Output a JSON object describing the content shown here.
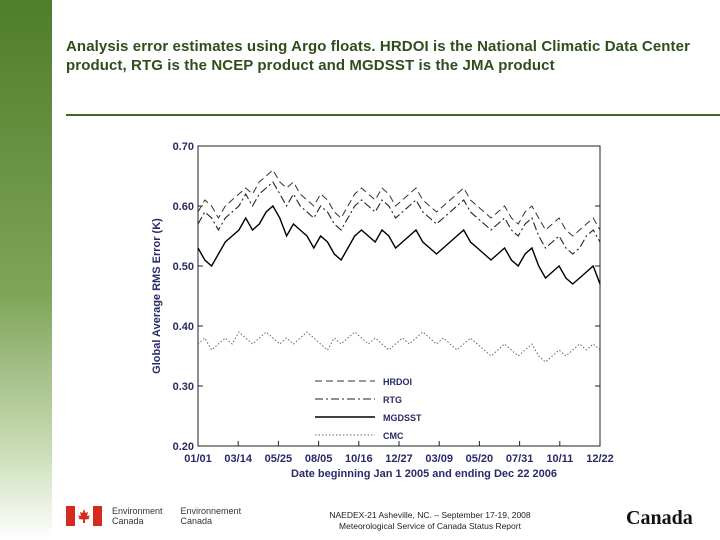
{
  "slide": {
    "title": "Analysis error estimates using Argo floats.  HRDOI is the National Climatic Data Center product, RTG is the NCEP product and MGDSST is the JMA product"
  },
  "footer": {
    "org_en_line1": "Environment",
    "org_en_line2": "Canada",
    "org_fr_line1": "Environnement",
    "org_fr_line2": "Canada",
    "center_line1": "NAEDEX-21 Asheville, NC. – September 17-19, 2008",
    "center_line2": "Meteorological Service of Canada Status Report",
    "wordmark": "Canada"
  },
  "colors": {
    "accent_green": "#3d6a23",
    "flag_red": "#d52b1e"
  },
  "chart_data": {
    "type": "line",
    "title": "",
    "xlabel": "Date beginning Jan 1 2005 and ending Dec 22 2006",
    "ylabel": "Global Average RMS Error (K)",
    "ylim": [
      0.2,
      0.7
    ],
    "yticks": [
      "0.20",
      "0.30",
      "0.40",
      "0.50",
      "0.60",
      "0.70"
    ],
    "xticks": [
      "01/01",
      "03/14",
      "05/25",
      "08/05",
      "10/16",
      "12/27",
      "03/09",
      "05/20",
      "07/31",
      "10/11",
      "12/22"
    ],
    "legend": [
      "HRDOI",
      "RTG",
      "MGDSST",
      "CMC"
    ],
    "series": [
      {
        "name": "HRDOI",
        "style": "dashed",
        "values": [
          0.59,
          0.61,
          0.6,
          0.58,
          0.6,
          0.61,
          0.62,
          0.63,
          0.62,
          0.64,
          0.65,
          0.66,
          0.64,
          0.63,
          0.64,
          0.62,
          0.61,
          0.6,
          0.62,
          0.61,
          0.59,
          0.58,
          0.6,
          0.62,
          0.63,
          0.62,
          0.61,
          0.63,
          0.62,
          0.6,
          0.61,
          0.62,
          0.63,
          0.61,
          0.6,
          0.59,
          0.6,
          0.61,
          0.62,
          0.63,
          0.61,
          0.6,
          0.59,
          0.58,
          0.59,
          0.6,
          0.58,
          0.57,
          0.59,
          0.6,
          0.58,
          0.56,
          0.57,
          0.58,
          0.56,
          0.55,
          0.56,
          0.57,
          0.58,
          0.56
        ]
      },
      {
        "name": "RTG",
        "style": "dash-dot",
        "values": [
          0.57,
          0.59,
          0.58,
          0.56,
          0.58,
          0.59,
          0.6,
          0.62,
          0.6,
          0.62,
          0.63,
          0.64,
          0.62,
          0.6,
          0.62,
          0.6,
          0.59,
          0.58,
          0.6,
          0.59,
          0.57,
          0.56,
          0.58,
          0.6,
          0.61,
          0.6,
          0.59,
          0.61,
          0.6,
          0.58,
          0.59,
          0.6,
          0.61,
          0.59,
          0.58,
          0.57,
          0.58,
          0.59,
          0.6,
          0.61,
          0.59,
          0.58,
          0.57,
          0.56,
          0.57,
          0.58,
          0.56,
          0.55,
          0.57,
          0.58,
          0.55,
          0.53,
          0.54,
          0.55,
          0.53,
          0.52,
          0.53,
          0.55,
          0.56,
          0.54
        ]
      },
      {
        "name": "MGDSST",
        "style": "solid",
        "values": [
          0.53,
          0.51,
          0.5,
          0.52,
          0.54,
          0.55,
          0.56,
          0.58,
          0.56,
          0.57,
          0.59,
          0.6,
          0.58,
          0.55,
          0.57,
          0.56,
          0.55,
          0.53,
          0.55,
          0.54,
          0.52,
          0.51,
          0.53,
          0.55,
          0.56,
          0.55,
          0.54,
          0.56,
          0.55,
          0.53,
          0.54,
          0.55,
          0.56,
          0.54,
          0.53,
          0.52,
          0.53,
          0.54,
          0.55,
          0.56,
          0.54,
          0.53,
          0.52,
          0.51,
          0.52,
          0.53,
          0.51,
          0.5,
          0.52,
          0.53,
          0.5,
          0.48,
          0.49,
          0.5,
          0.48,
          0.47,
          0.48,
          0.49,
          0.5,
          0.47
        ]
      },
      {
        "name": "CMC",
        "style": "dotted",
        "values": [
          0.37,
          0.38,
          0.36,
          0.37,
          0.38,
          0.37,
          0.39,
          0.38,
          0.37,
          0.38,
          0.39,
          0.38,
          0.37,
          0.38,
          0.37,
          0.38,
          0.39,
          0.38,
          0.37,
          0.36,
          0.38,
          0.37,
          0.38,
          0.39,
          0.38,
          0.37,
          0.38,
          0.37,
          0.36,
          0.37,
          0.38,
          0.37,
          0.38,
          0.39,
          0.38,
          0.37,
          0.38,
          0.37,
          0.36,
          0.37,
          0.38,
          0.37,
          0.36,
          0.35,
          0.36,
          0.37,
          0.36,
          0.35,
          0.36,
          0.37,
          0.35,
          0.34,
          0.35,
          0.36,
          0.35,
          0.36,
          0.37,
          0.36,
          0.37,
          0.36
        ]
      }
    ]
  }
}
